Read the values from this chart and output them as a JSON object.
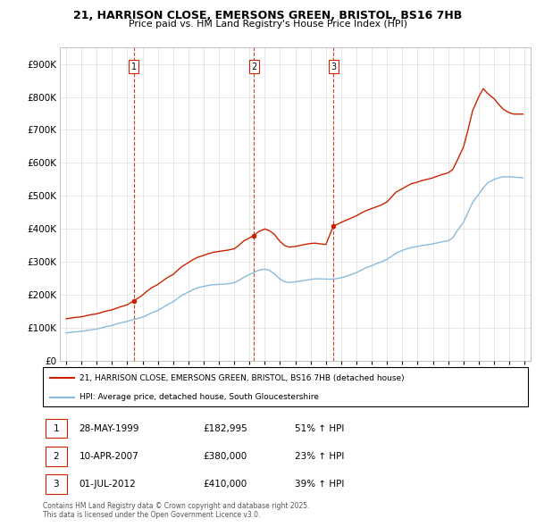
{
  "title_line1": "21, HARRISON CLOSE, EMERSONS GREEN, BRISTOL, BS16 7HB",
  "title_line2": "Price paid vs. HM Land Registry's House Price Index (HPI)",
  "legend_label_red": "21, HARRISON CLOSE, EMERSONS GREEN, BRISTOL, BS16 7HB (detached house)",
  "legend_label_blue": "HPI: Average price, detached house, South Gloucestershire",
  "footer": "Contains HM Land Registry data © Crown copyright and database right 2025.\nThis data is licensed under the Open Government Licence v3.0.",
  "transactions": [
    {
      "num": 1,
      "date": "28-MAY-1999",
      "price": "£182,995",
      "hpi": "51% ↑ HPI",
      "year": 1999.42
    },
    {
      "num": 2,
      "date": "10-APR-2007",
      "price": "£380,000",
      "hpi": "23% ↑ HPI",
      "year": 2007.28
    },
    {
      "num": 3,
      "date": "01-JUL-2012",
      "price": "£410,000",
      "hpi": "39% ↑ HPI",
      "year": 2012.5
    }
  ],
  "red_x": [
    1995.0,
    1995.3,
    1995.6,
    1996.0,
    1996.3,
    1996.6,
    1997.0,
    1997.3,
    1997.6,
    1998.0,
    1998.3,
    1998.6,
    1999.0,
    1999.42,
    1999.7,
    2000.0,
    2000.3,
    2000.6,
    2001.0,
    2001.3,
    2001.6,
    2002.0,
    2002.3,
    2002.6,
    2003.0,
    2003.3,
    2003.6,
    2004.0,
    2004.3,
    2004.6,
    2005.0,
    2005.3,
    2005.6,
    2006.0,
    2006.3,
    2006.6,
    2007.0,
    2007.28,
    2007.6,
    2008.0,
    2008.3,
    2008.6,
    2009.0,
    2009.3,
    2009.6,
    2010.0,
    2010.3,
    2010.6,
    2011.0,
    2011.3,
    2011.6,
    2012.0,
    2012.5,
    2012.8,
    2013.0,
    2013.3,
    2013.6,
    2014.0,
    2014.3,
    2014.6,
    2015.0,
    2015.3,
    2015.6,
    2016.0,
    2016.3,
    2016.6,
    2017.0,
    2017.3,
    2017.6,
    2018.0,
    2018.3,
    2018.6,
    2019.0,
    2019.3,
    2019.6,
    2020.0,
    2020.3,
    2020.6,
    2021.0,
    2021.3,
    2021.6,
    2022.0,
    2022.3,
    2022.6,
    2023.0,
    2023.3,
    2023.6,
    2024.0,
    2024.3,
    2024.6,
    2024.9
  ],
  "red_y": [
    128000,
    130000,
    132000,
    134000,
    137000,
    140000,
    143000,
    147000,
    151000,
    155000,
    160000,
    165000,
    170000,
    182995,
    190000,
    200000,
    212000,
    222000,
    232000,
    242000,
    252000,
    262000,
    275000,
    287000,
    298000,
    307000,
    314000,
    320000,
    325000,
    329000,
    332000,
    334000,
    336000,
    340000,
    350000,
    363000,
    373000,
    380000,
    392000,
    400000,
    395000,
    385000,
    362000,
    350000,
    345000,
    347000,
    350000,
    353000,
    356000,
    357000,
    355000,
    353000,
    410000,
    415000,
    420000,
    426000,
    432000,
    440000,
    448000,
    455000,
    462000,
    467000,
    472000,
    482000,
    497000,
    512000,
    522000,
    530000,
    537000,
    542000,
    547000,
    550000,
    555000,
    560000,
    565000,
    570000,
    580000,
    608000,
    648000,
    700000,
    758000,
    800000,
    825000,
    810000,
    795000,
    778000,
    763000,
    752000,
    748000,
    748000,
    748000
  ],
  "blue_x": [
    1995.0,
    1995.3,
    1995.6,
    1996.0,
    1996.3,
    1996.6,
    1997.0,
    1997.3,
    1997.6,
    1998.0,
    1998.3,
    1998.6,
    1999.0,
    1999.3,
    1999.6,
    2000.0,
    2000.3,
    2000.6,
    2001.0,
    2001.3,
    2001.6,
    2002.0,
    2002.3,
    2002.6,
    2003.0,
    2003.3,
    2003.6,
    2004.0,
    2004.3,
    2004.6,
    2005.0,
    2005.3,
    2005.6,
    2006.0,
    2006.3,
    2006.6,
    2007.0,
    2007.3,
    2007.6,
    2008.0,
    2008.3,
    2008.6,
    2009.0,
    2009.3,
    2009.6,
    2010.0,
    2010.3,
    2010.6,
    2011.0,
    2011.3,
    2011.6,
    2012.0,
    2012.3,
    2012.6,
    2013.0,
    2013.3,
    2013.6,
    2014.0,
    2014.3,
    2014.6,
    2015.0,
    2015.3,
    2015.6,
    2016.0,
    2016.3,
    2016.6,
    2017.0,
    2017.3,
    2017.6,
    2018.0,
    2018.3,
    2018.6,
    2019.0,
    2019.3,
    2019.6,
    2020.0,
    2020.3,
    2020.6,
    2021.0,
    2021.3,
    2021.6,
    2022.0,
    2022.3,
    2022.6,
    2023.0,
    2023.3,
    2023.6,
    2024.0,
    2024.3,
    2024.6,
    2024.9
  ],
  "blue_y": [
    85000,
    87000,
    88000,
    90000,
    92000,
    94000,
    97000,
    100000,
    104000,
    108000,
    112000,
    116000,
    120000,
    124000,
    128000,
    133000,
    139000,
    146000,
    153000,
    161000,
    170000,
    179000,
    190000,
    200000,
    209000,
    216000,
    222000,
    226000,
    229000,
    231000,
    232000,
    233000,
    234000,
    237000,
    244000,
    253000,
    262000,
    269000,
    275000,
    278000,
    275000,
    265000,
    248000,
    240000,
    238000,
    240000,
    242000,
    244000,
    247000,
    249000,
    249000,
    248000,
    248000,
    249000,
    252000,
    256000,
    261000,
    268000,
    275000,
    282000,
    289000,
    295000,
    300000,
    308000,
    317000,
    327000,
    335000,
    340000,
    344000,
    347000,
    350000,
    352000,
    355000,
    358000,
    361000,
    364000,
    373000,
    395000,
    420000,
    450000,
    480000,
    505000,
    525000,
    540000,
    550000,
    555000,
    558000,
    558000,
    557000,
    556000,
    555000
  ],
  "ylim": [
    0,
    950000
  ],
  "xlim_left": 1994.6,
  "xlim_right": 2025.4,
  "red_color": "#cc2200",
  "blue_color": "#88bbdd",
  "dashed_color": "#cc2200",
  "grid_color": "#dddddd",
  "bg_color": "#ffffff"
}
